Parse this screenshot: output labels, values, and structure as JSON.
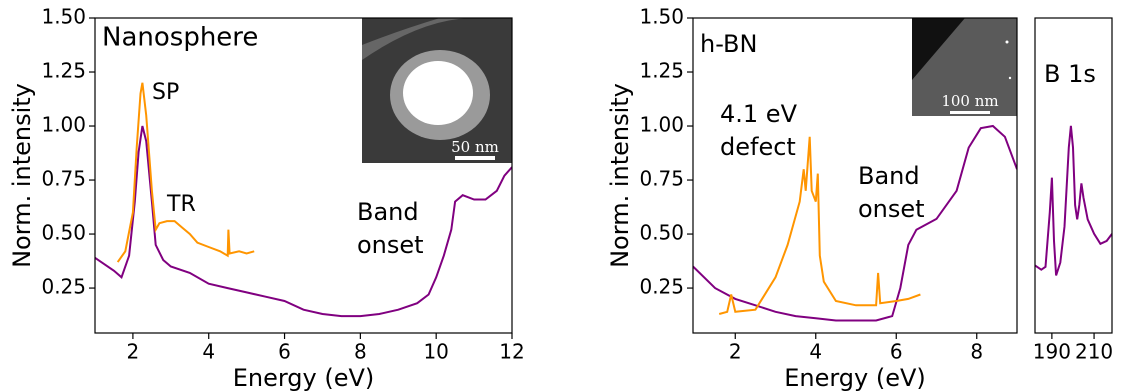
{
  "chart_data": [
    {
      "type": "line",
      "xlabel": "Energy (eV)",
      "ylabel": "Norm. intensity",
      "xlim": [
        1,
        12
      ],
      "ylim": [
        0.042,
        1.5
      ],
      "xticks": [
        2,
        4,
        6,
        8,
        10,
        12
      ],
      "yticks": [
        0.25,
        {
          "value": 0.5,
          "label": "0.50"
        },
        0.75,
        {
          "value": 1.0,
          "label": "1.00"
        },
        1.25,
        {
          "value": 1.5,
          "label": "1.50"
        }
      ],
      "annotations": [
        [
          "Nanosphere"
        ],
        [
          "SP"
        ],
        [
          "TR"
        ],
        [
          "Band",
          "onset"
        ]
      ],
      "scale_label": "50 nm",
      "series": [
        {
          "color": "#800080",
          "x": [
            1.0,
            1.5,
            1.7,
            1.9,
            2.05,
            2.15,
            2.25,
            2.35,
            2.5,
            2.6,
            2.8,
            3.0,
            3.5,
            4.0,
            4.5,
            5.0,
            5.5,
            6.0,
            6.5,
            7.0,
            7.5,
            8.0,
            8.5,
            9.0,
            9.5,
            9.8,
            10.0,
            10.2,
            10.4,
            10.5,
            10.7,
            11.0,
            11.3,
            11.6,
            11.8,
            12.0
          ],
          "values": [
            0.39,
            0.33,
            0.3,
            0.4,
            0.65,
            0.88,
            1.0,
            0.93,
            0.65,
            0.45,
            0.38,
            0.35,
            0.32,
            0.27,
            0.25,
            0.23,
            0.21,
            0.19,
            0.15,
            0.13,
            0.12,
            0.12,
            0.13,
            0.15,
            0.18,
            0.22,
            0.3,
            0.4,
            0.52,
            0.65,
            0.68,
            0.66,
            0.66,
            0.7,
            0.77,
            0.81
          ]
        },
        {
          "color": "#ff9500",
          "x": [
            1.6,
            1.8,
            2.0,
            2.1,
            2.2,
            2.25,
            2.35,
            2.5,
            2.6,
            2.7,
            2.9,
            3.1,
            3.3,
            3.5,
            3.7,
            4.0,
            4.3,
            4.5,
            4.52,
            4.55,
            4.8,
            5.0,
            5.2
          ],
          "values": [
            0.37,
            0.42,
            0.6,
            0.9,
            1.15,
            1.2,
            1.05,
            0.7,
            0.52,
            0.55,
            0.56,
            0.56,
            0.53,
            0.5,
            0.46,
            0.44,
            0.42,
            0.4,
            0.52,
            0.41,
            0.42,
            0.41,
            0.42
          ]
        }
      ]
    },
    {
      "type": "line",
      "xlabel": "Energy (eV)",
      "ylabel": "Norm. intensity",
      "xlim": [
        0.95,
        9.0
      ],
      "ylim": [
        0.042,
        1.5
      ],
      "xticks": [
        2,
        4,
        6,
        8
      ],
      "yticks": [
        0.25,
        {
          "value": 0.5,
          "label": "0.50"
        },
        0.75,
        {
          "value": 1.0,
          "label": "1.00"
        },
        1.25,
        {
          "value": 1.5,
          "label": "1.50"
        }
      ],
      "annotations": [
        [
          "h-BN"
        ],
        [
          "4.1 eV",
          "defect"
        ],
        [
          "Band",
          "onset"
        ]
      ],
      "scale_label": "100 nm",
      "series": [
        {
          "color": "#800080",
          "x": [
            0.95,
            1.5,
            2.0,
            2.5,
            3.0,
            3.5,
            4.0,
            4.5,
            5.0,
            5.5,
            5.9,
            6.1,
            6.3,
            6.5,
            7.0,
            7.5,
            7.8,
            8.1,
            8.4,
            8.7,
            9.0
          ],
          "values": [
            0.35,
            0.25,
            0.2,
            0.17,
            0.14,
            0.12,
            0.11,
            0.1,
            0.1,
            0.1,
            0.12,
            0.25,
            0.45,
            0.52,
            0.57,
            0.7,
            0.9,
            0.99,
            1.0,
            0.95,
            0.8
          ]
        },
        {
          "color": "#ff9500",
          "x": [
            1.6,
            1.8,
            1.9,
            2.0,
            2.5,
            3.0,
            3.3,
            3.6,
            3.7,
            3.75,
            3.85,
            3.9,
            4.0,
            4.05,
            4.1,
            4.2,
            4.5,
            5.0,
            5.5,
            5.55,
            5.6,
            6.0,
            6.3,
            6.6
          ],
          "values": [
            0.13,
            0.14,
            0.22,
            0.14,
            0.15,
            0.3,
            0.45,
            0.65,
            0.8,
            0.7,
            0.95,
            0.7,
            0.65,
            0.78,
            0.4,
            0.28,
            0.19,
            0.17,
            0.17,
            0.32,
            0.18,
            0.19,
            0.2,
            0.22
          ]
        }
      ]
    },
    {
      "type": "line",
      "xlim": [
        182,
        218.5
      ],
      "ylim": [
        -0.44,
        1.75
      ],
      "xticks": [
        190,
        210
      ],
      "annotations": [
        [
          "B 1s"
        ]
      ],
      "series": [
        {
          "color": "#800080",
          "x": [
            182,
            185,
            187,
            189,
            190,
            191,
            192,
            194,
            196,
            198,
            199,
            200,
            201,
            202,
            203,
            204,
            205,
            207,
            210,
            213,
            216,
            218.5
          ],
          "values": [
            0.03,
            0.0,
            0.02,
            0.4,
            0.64,
            0.2,
            -0.04,
            0.05,
            0.3,
            0.85,
            1.0,
            0.85,
            0.45,
            0.35,
            0.45,
            0.6,
            0.5,
            0.35,
            0.25,
            0.18,
            0.2,
            0.25
          ]
        }
      ]
    }
  ]
}
